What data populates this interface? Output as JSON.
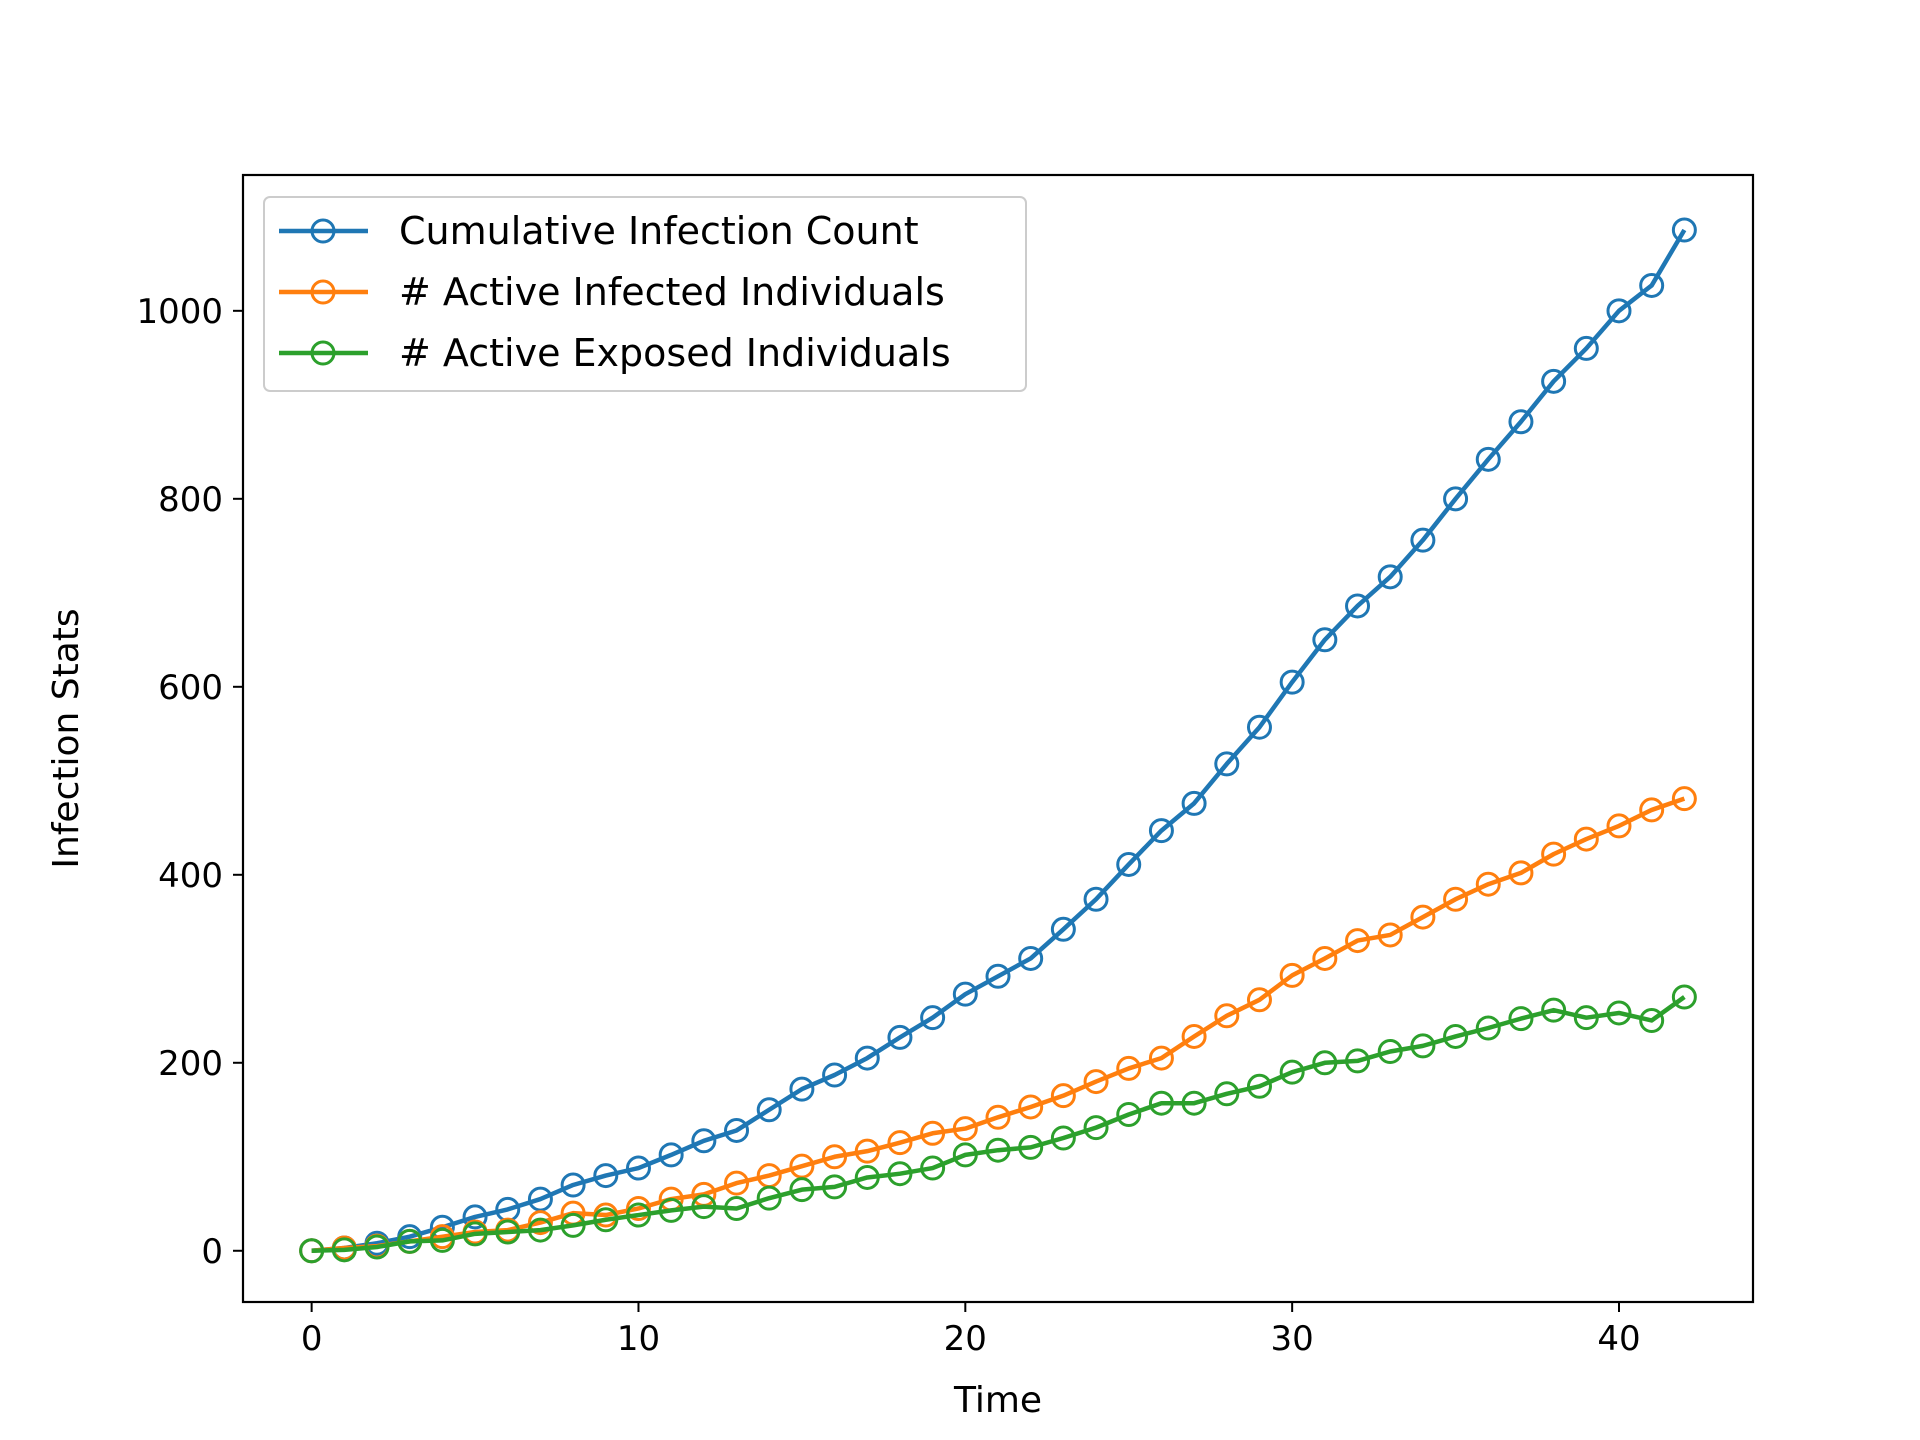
{
  "chart_data": {
    "type": "line",
    "title": "",
    "xlabel": "Time",
    "ylabel": "Infection Stats",
    "xlim": [
      -2.1,
      44.1
    ],
    "ylim": [
      -54.5,
      1144.5
    ],
    "x_ticks": [
      0,
      10,
      20,
      30,
      40
    ],
    "y_ticks": [
      0,
      200,
      400,
      600,
      800,
      1000
    ],
    "grid": false,
    "legend_position": "top-left",
    "marker": "open-circle",
    "x": [
      0,
      1,
      2,
      3,
      4,
      5,
      6,
      7,
      8,
      9,
      10,
      11,
      12,
      13,
      14,
      15,
      16,
      17,
      18,
      19,
      20,
      21,
      22,
      23,
      24,
      25,
      26,
      27,
      28,
      29,
      30,
      31,
      32,
      33,
      34,
      35,
      36,
      37,
      38,
      39,
      40,
      41,
      42
    ],
    "series": [
      {
        "name": "Cumulative Infection Count",
        "color": "#1f77b4",
        "values": [
          0,
          3,
          8,
          15,
          25,
          36,
          44,
          55,
          70,
          80,
          88,
          102,
          117,
          128,
          150,
          172,
          187,
          205,
          227,
          248,
          273,
          292,
          311,
          342,
          374,
          411,
          447,
          476,
          518,
          557,
          605,
          650,
          686,
          717,
          756,
          800,
          842,
          882,
          925,
          960,
          1000,
          1027,
          1086
        ]
      },
      {
        "name": "# Active Infected Individuals",
        "color": "#ff7f0e",
        "values": [
          0,
          3,
          5,
          10,
          15,
          20,
          22,
          30,
          40,
          38,
          45,
          55,
          60,
          72,
          80,
          90,
          100,
          106,
          115,
          125,
          130,
          142,
          153,
          165,
          180,
          194,
          205,
          228,
          250,
          267,
          293,
          311,
          330,
          336,
          355,
          374,
          390,
          402,
          422,
          438,
          452,
          469,
          481
        ]
      },
      {
        "name": "# Active Exposed Individuals",
        "color": "#2ca02c",
        "values": [
          0,
          1,
          4,
          10,
          11,
          18,
          20,
          22,
          27,
          33,
          38,
          43,
          47,
          45,
          56,
          65,
          68,
          78,
          82,
          88,
          102,
          107,
          110,
          120,
          131,
          145,
          157,
          157,
          167,
          175,
          190,
          200,
          202,
          212,
          218,
          228,
          237,
          247,
          256,
          248,
          253,
          245,
          270
        ]
      }
    ]
  }
}
